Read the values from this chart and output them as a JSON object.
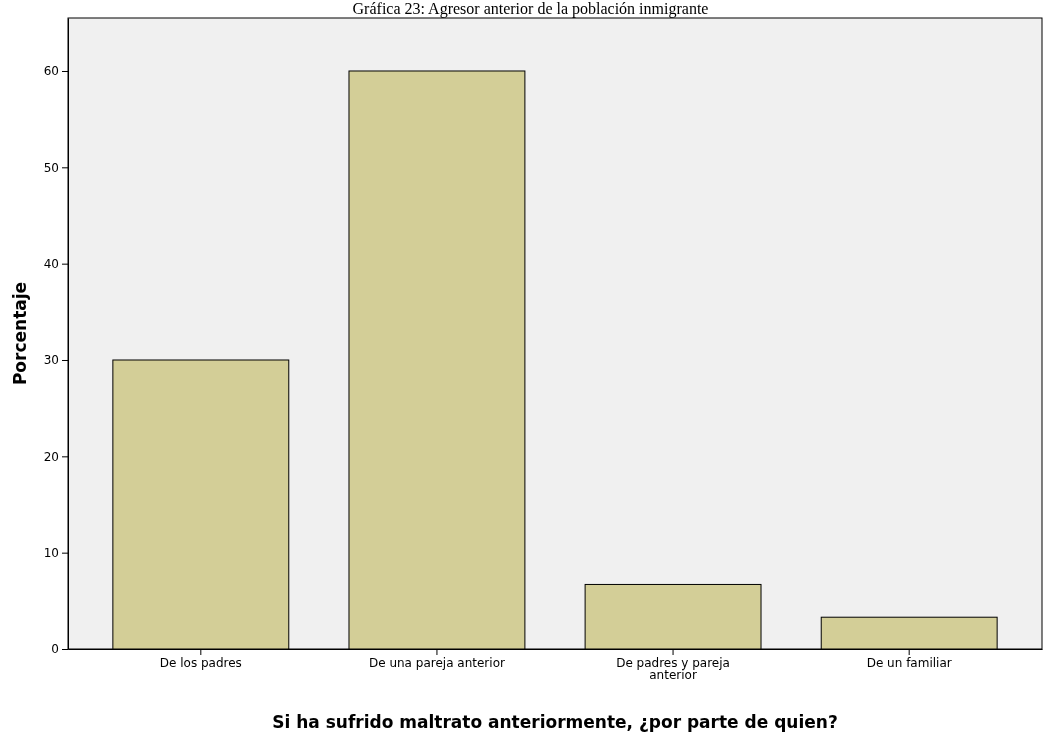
{
  "chart_data": {
    "type": "bar",
    "title": "Gráfica 23: Agresor anterior de la población inmigrante",
    "xlabel": "Si ha sufrido maltrato anteriormente, ¿por parte de quien?",
    "ylabel": "Porcentaje",
    "categories": [
      "De los padres",
      "De una pareja anterior",
      "De padres y pareja anterior",
      "De un familiar"
    ],
    "values": [
      30,
      60,
      6.7,
      3.3
    ],
    "color": "#d3ce97",
    "ylim": [
      0,
      65.5
    ],
    "yticks": [
      0,
      10,
      20,
      30,
      40,
      50,
      60
    ],
    "grid": false
  }
}
